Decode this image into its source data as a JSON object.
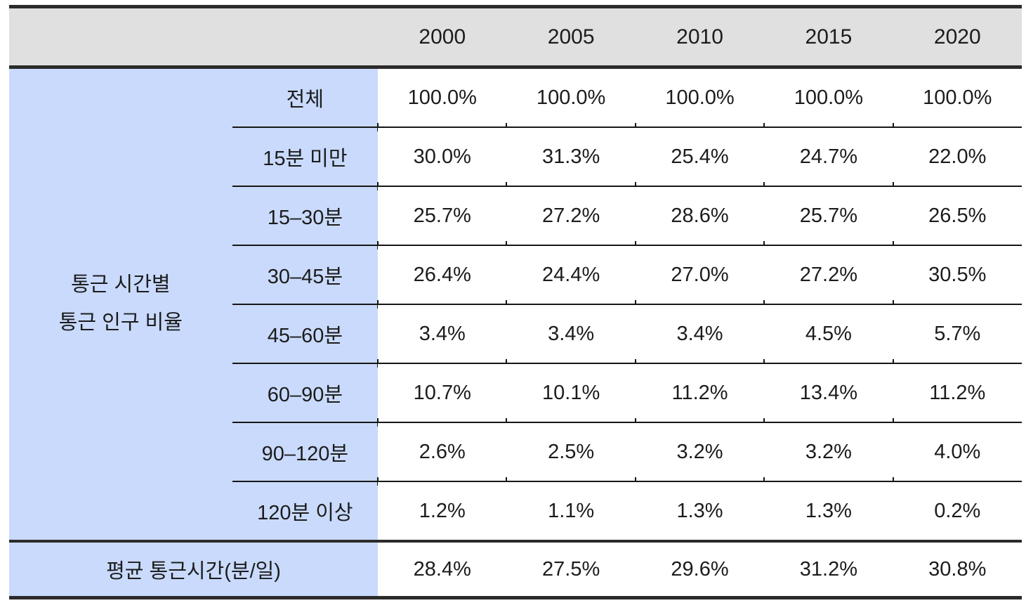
{
  "colors": {
    "header_bg": "#e0e0e0",
    "blue_bg": "#c9dafc",
    "border": "#2b2b2b",
    "text": "#1c1c1c"
  },
  "chart_data": {
    "type": "table",
    "columns": [
      "2000",
      "2005",
      "2010",
      "2015",
      "2020"
    ],
    "row_group": {
      "line1": "통근 시간별",
      "line2": "통근 인구 비율"
    },
    "rows": [
      {
        "label": "전체",
        "values": [
          "100.0%",
          "100.0%",
          "100.0%",
          "100.0%",
          "100.0%"
        ]
      },
      {
        "label": "15분 미만",
        "values": [
          "30.0%",
          "31.3%",
          "25.4%",
          "24.7%",
          "22.0%"
        ]
      },
      {
        "label": "15–30분",
        "values": [
          "25.7%",
          "27.2%",
          "28.6%",
          "25.7%",
          "26.5%"
        ]
      },
      {
        "label": "30–45분",
        "values": [
          "26.4%",
          "24.4%",
          "27.0%",
          "27.2%",
          "30.5%"
        ]
      },
      {
        "label": "45–60분",
        "values": [
          "3.4%",
          "3.4%",
          "3.4%",
          "4.5%",
          "5.7%"
        ]
      },
      {
        "label": "60–90분",
        "values": [
          "10.7%",
          "10.1%",
          "11.2%",
          "13.4%",
          "11.2%"
        ]
      },
      {
        "label": "90–120분",
        "values": [
          "2.6%",
          "2.5%",
          "3.2%",
          "3.2%",
          "4.0%"
        ]
      },
      {
        "label": "120분 이상",
        "values": [
          "1.2%",
          "1.1%",
          "1.3%",
          "1.3%",
          "0.2%"
        ]
      }
    ],
    "footer": {
      "label": "평균 통근시간(분/일)",
      "values": [
        "28.4%",
        "27.5%",
        "29.6%",
        "31.2%",
        "30.8%"
      ]
    }
  }
}
